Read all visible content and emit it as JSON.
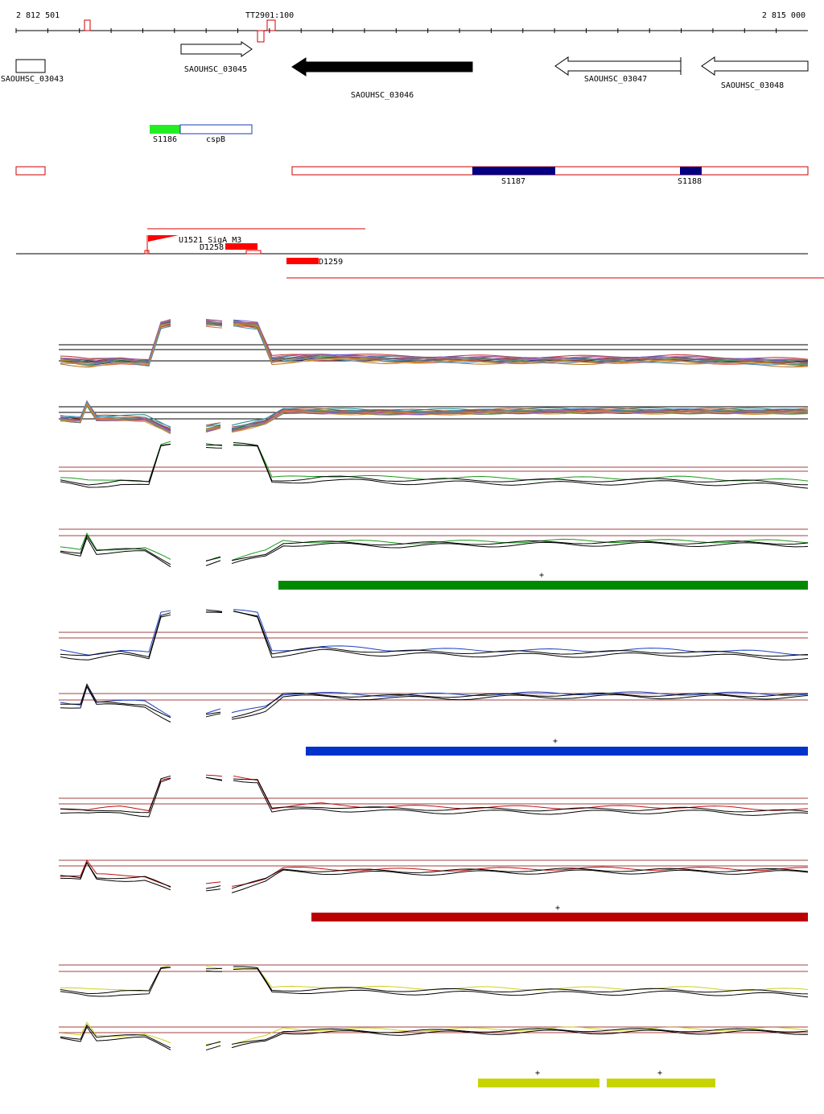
{
  "ruler": {
    "start": "2 812 501",
    "marker": "TT2901:100",
    "end": "2 815 000"
  },
  "genes": [
    "SAOUHSC_03043",
    "SAOUHSC_03045",
    "SAOUHSC_03046",
    "SAOUHSC_03047",
    "SAOUHSC_03048"
  ],
  "features": [
    "S1186",
    "cspB",
    "S1187",
    "S1188"
  ],
  "elements": [
    "U1521_SigA_M3",
    "D1258",
    "D1259"
  ],
  "segments": [
    "+",
    "+",
    "+",
    "+",
    "+"
  ]
}
